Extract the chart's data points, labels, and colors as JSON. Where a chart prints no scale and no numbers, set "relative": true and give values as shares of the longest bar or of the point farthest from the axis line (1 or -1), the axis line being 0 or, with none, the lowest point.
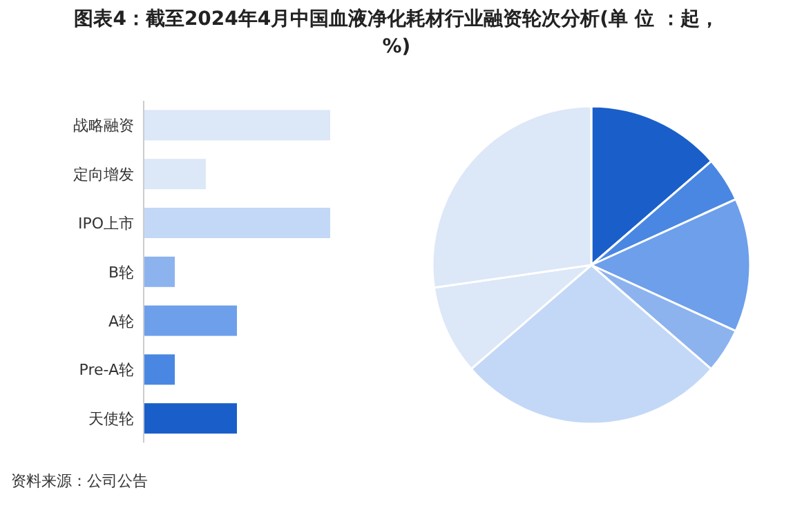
{
  "chart_data": [
    {
      "type": "bar",
      "orientation": "horizontal",
      "relative": true,
      "title": "图表4：截至2024年4月中国血液净化耗材行业融资轮次分析(单 位 ：起，%)",
      "annotations": [
        "资料来源：公司公告"
      ],
      "categories": [
        "战略融资",
        "定向增发",
        "IPO上市",
        "B轮",
        "A轮",
        "Pre-A轮",
        "天使轮"
      ],
      "values": [
        1,
        0.333,
        1,
        0.167,
        0.5,
        0.167,
        0.5
      ],
      "colors": [
        "#dce7f8",
        "#dce7f8",
        "#c3d8f6",
        "#8db3ef",
        "#6d9feb",
        "#4a87e2",
        "#1a5fc9"
      ]
    },
    {
      "type": "pie",
      "categories": [
        null,
        null,
        null,
        null,
        null,
        null,
        null
      ],
      "values": [
        13.64,
        4.55,
        13.64,
        4.55,
        27.27,
        9.09,
        27.27
      ],
      "colors": [
        "#1a5fc9",
        "#4a87e2",
        "#6d9feb",
        "#8db3ef",
        "#c3d8f6",
        "#dce7f8",
        "#dce7f8"
      ]
    }
  ]
}
